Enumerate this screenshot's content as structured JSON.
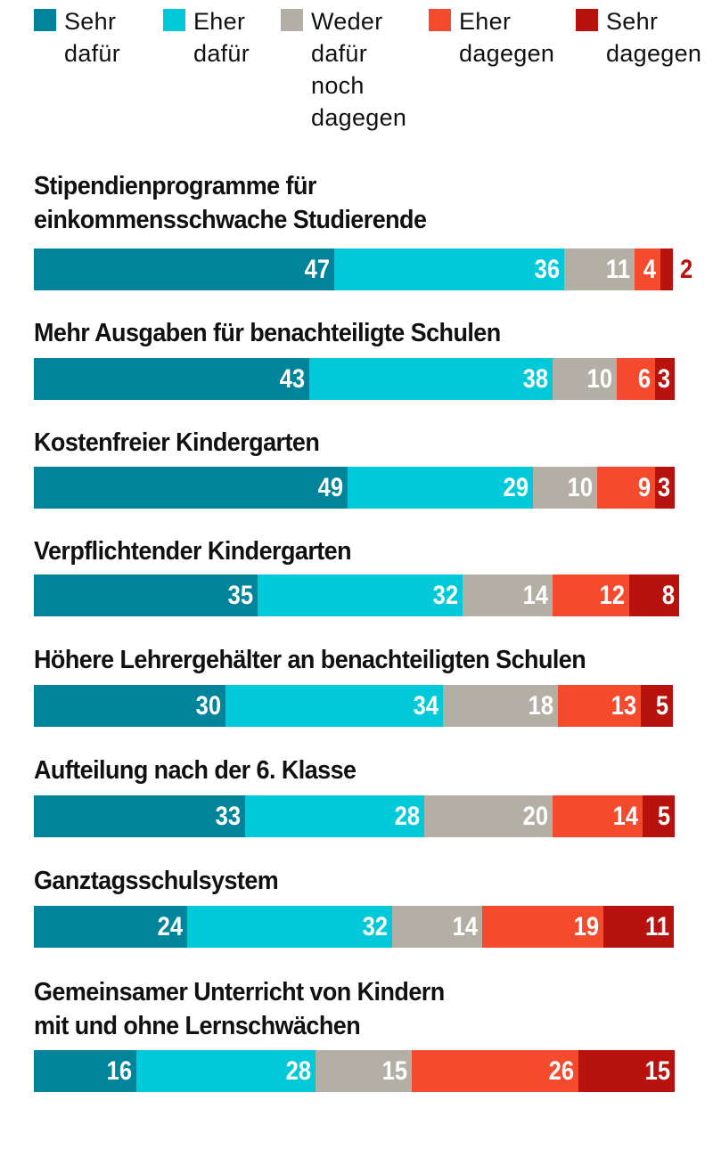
{
  "legend": [
    {
      "label": "Sehr\ndafür",
      "color": "#00849b"
    },
    {
      "label": "Eher\ndafür",
      "color": "#00c9d9"
    },
    {
      "label": "Weder\ndafür\nnoch\ndagegen",
      "color": "#b3afa5"
    },
    {
      "label": "Eher\ndagegen",
      "color": "#f44b2f"
    },
    {
      "label": "Sehr\ndagegen",
      "color": "#b8120f"
    }
  ],
  "chart_data": {
    "type": "bar",
    "orientation": "horizontal-stacked",
    "title": "",
    "xlabel": "",
    "ylabel": "",
    "legend_position": "top",
    "series_names": [
      "Sehr dafür",
      "Eher dafür",
      "Weder dafür noch dagegen",
      "Eher dagegen",
      "Sehr dagegen"
    ],
    "series_colors": [
      "#00849b",
      "#00c9d9",
      "#b3afa5",
      "#f44b2f",
      "#b8120f"
    ],
    "categories": [
      "Stipendienprogramme für\neinkommensschwache Studierende",
      "Mehr Ausgaben für benachteiligte Schulen",
      "Kostenfreier Kindergarten",
      "Verpflichtender Kindergarten",
      "Höhere Lehrergehälter an benachteiligten Schulen",
      "Aufteilung nach der 6. Klasse",
      "Ganztagsschulsystem",
      "Gemeinsamer Unterricht von Kindern\nmit und ohne Lernschwächen"
    ],
    "rows": [
      {
        "values": [
          47,
          36,
          11,
          4,
          2
        ]
      },
      {
        "values": [
          43,
          38,
          10,
          6,
          3
        ]
      },
      {
        "values": [
          49,
          29,
          10,
          9,
          3
        ]
      },
      {
        "values": [
          35,
          32,
          14,
          12,
          8
        ]
      },
      {
        "values": [
          30,
          34,
          18,
          13,
          5
        ]
      },
      {
        "values": [
          33,
          28,
          20,
          14,
          5
        ]
      },
      {
        "values": [
          24,
          32,
          14,
          19,
          11
        ]
      },
      {
        "values": [
          16,
          28,
          15,
          26,
          15
        ]
      }
    ]
  }
}
